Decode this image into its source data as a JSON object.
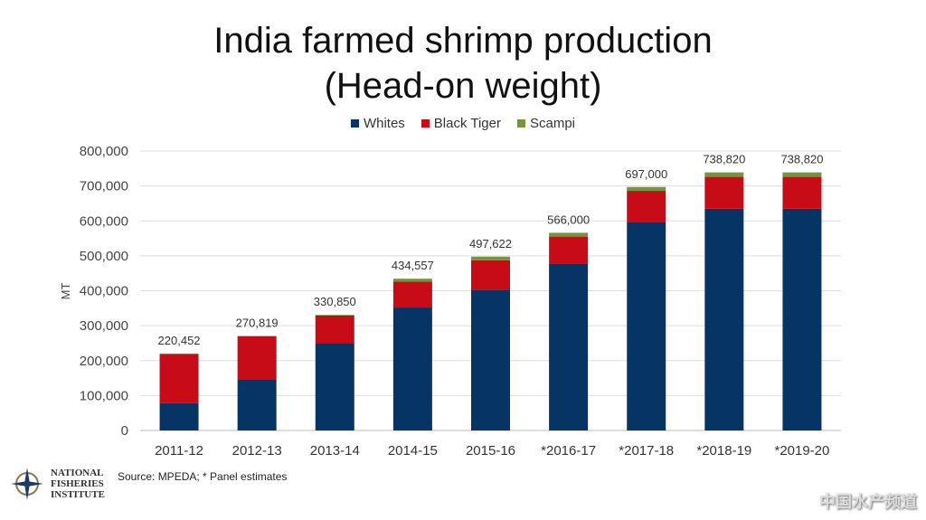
{
  "chart_data": {
    "type": "bar",
    "stacked": true,
    "title": "India farmed shrimp production",
    "subtitle": "(Head-on weight)",
    "ylabel": "MT",
    "xlabel": "",
    "ylim": [
      0,
      800000
    ],
    "yticks": [
      "0",
      "100,000",
      "200,000",
      "300,000",
      "400,000",
      "500,000",
      "600,000",
      "700,000",
      "800,000"
    ],
    "grid": true,
    "legend_position": "top",
    "categories": [
      "2011-12",
      "2012-13",
      "2013-14",
      "2014-15",
      "2015-16",
      "*2016-17",
      "*2017-18",
      "*2018-19",
      "*2019-20"
    ],
    "series": [
      {
        "name": "Whites",
        "color": "#063565",
        "values": [
          78000,
          145000,
          250000,
          352000,
          403000,
          478000,
          597000,
          635000,
          635000
        ]
      },
      {
        "name": "Black Tiger",
        "color": "#c80c17",
        "values": [
          140452,
          124819,
          78850,
          74057,
          84022,
          77000,
          89000,
          91000,
          91000
        ]
      },
      {
        "name": "Scampi",
        "color": "#76953a",
        "values": [
          2000,
          1000,
          2000,
          8500,
          10600,
          11000,
          11000,
          12820,
          12820
        ]
      }
    ],
    "totals": [
      "220,452",
      "270,819",
      "330,850",
      "434,557",
      "497,622",
      "566,000",
      "697,000",
      "738,820",
      "738,820"
    ]
  },
  "source": "Source: MPEDA; * Panel estimates",
  "logo": {
    "text": [
      "NATIONAL",
      "FISHERIES",
      "INSTITUTE"
    ]
  },
  "watermark": "中国水产频道"
}
